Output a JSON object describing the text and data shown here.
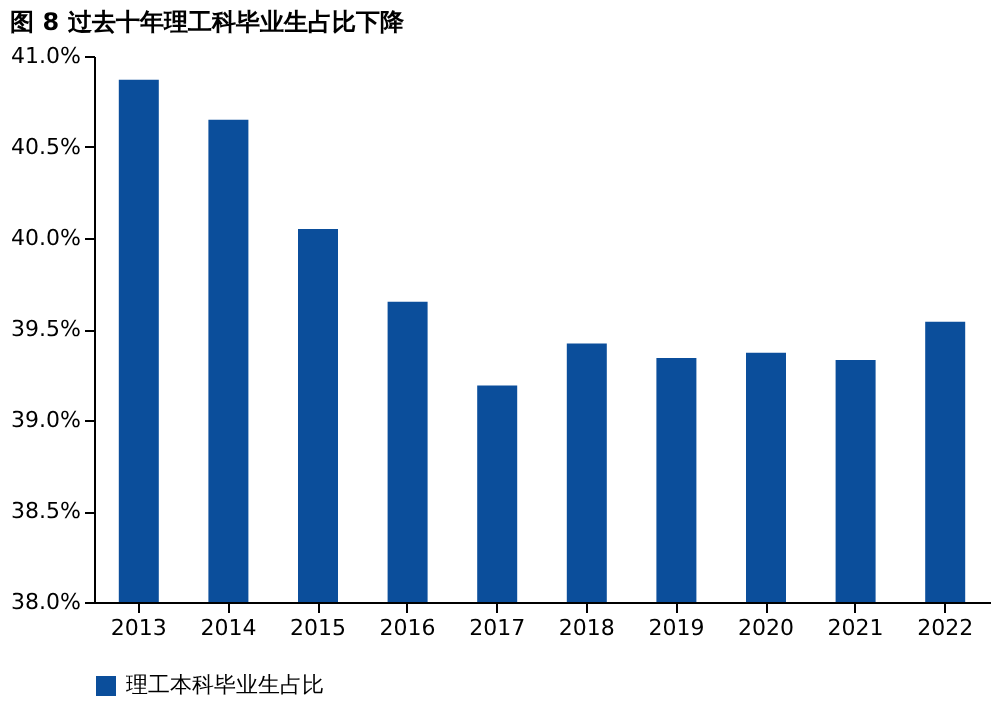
{
  "chart_data": {
    "type": "bar",
    "title": "图 8 过去十年理工科毕业生占比下降",
    "categories": [
      "2013",
      "2014",
      "2015",
      "2016",
      "2017",
      "2018",
      "2019",
      "2020",
      "2021",
      "2022"
    ],
    "series": [
      {
        "name": "理工本科毕业生占比",
        "color": "#0b4e9b",
        "values": [
          40.87,
          40.65,
          40.05,
          39.65,
          39.19,
          39.42,
          39.34,
          39.37,
          39.33,
          39.54
        ]
      }
    ],
    "ylim": [
      38,
      41
    ],
    "yticks": [
      {
        "value": 38,
        "label": "38.0%"
      },
      {
        "value": 38.5,
        "label": "38.5%"
      },
      {
        "value": 39,
        "label": "39.0%"
      },
      {
        "value": 39.5,
        "label": "39.5%"
      },
      {
        "value": 40,
        "label": "40.0%"
      },
      {
        "value": 40.5,
        "label": "40.5%"
      },
      {
        "value": 41,
        "label": "41.0%"
      }
    ],
    "grid": false,
    "legend": "bottom"
  }
}
